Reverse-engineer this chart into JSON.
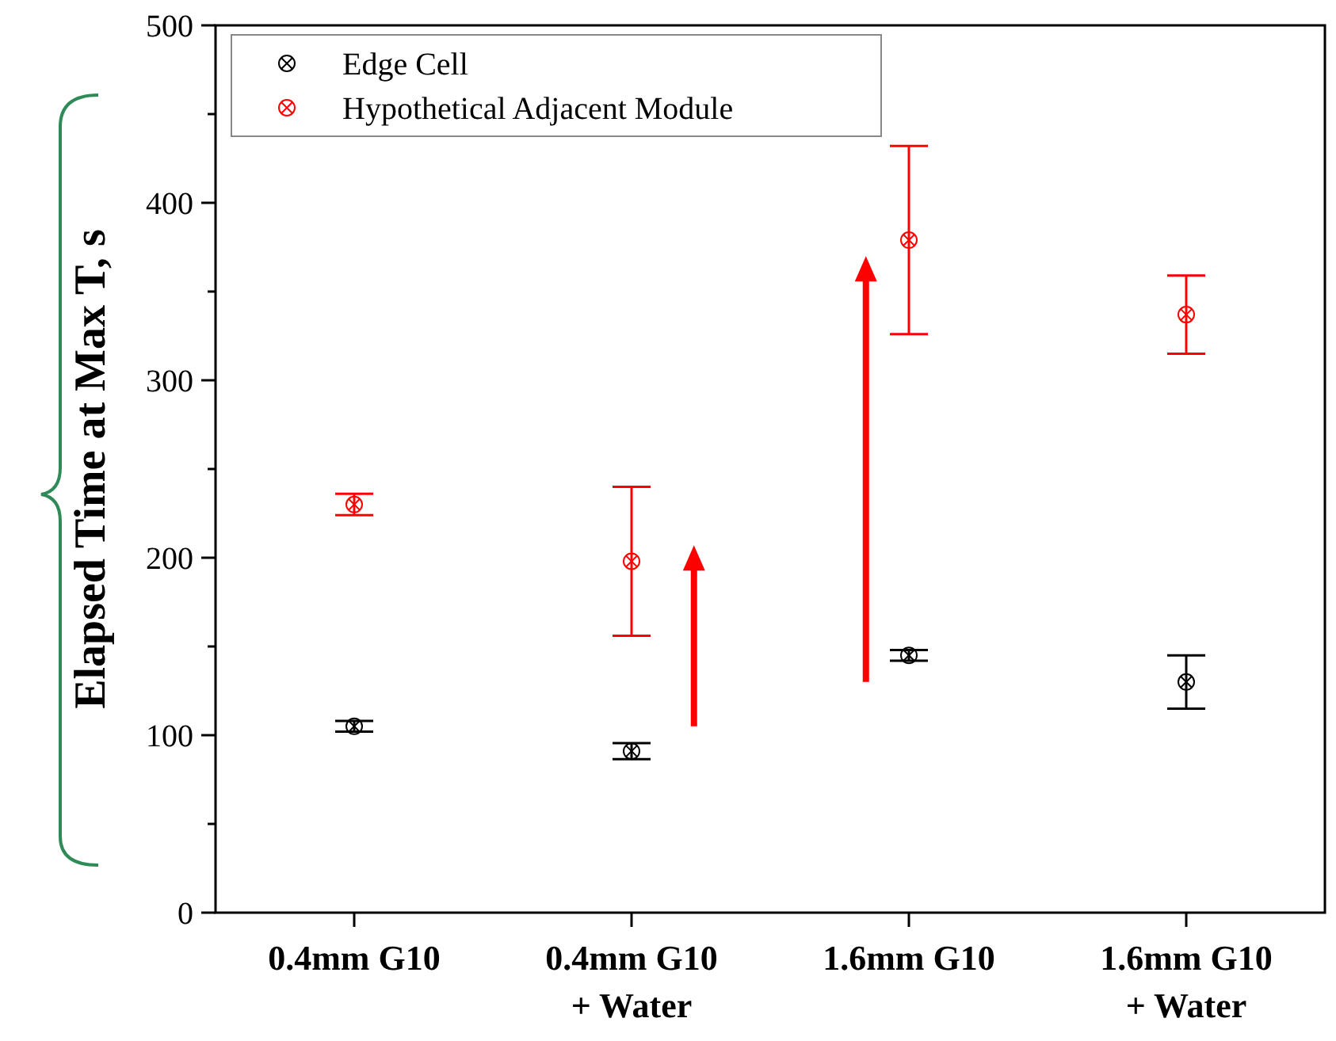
{
  "chart_data": {
    "type": "scatter",
    "ylabel": "Elapsed Time at Max T, s",
    "categories": [
      "0.4mm G10",
      "0.4mm G10\n+ Water",
      "1.6mm G10",
      "1.6mm G10\n+ Water"
    ],
    "ylim": [
      0,
      500
    ],
    "yticks": [
      0,
      {
        "value": 50,
        "label": null
      },
      100,
      {
        "value": 150,
        "label": null
      },
      200,
      {
        "value": 250,
        "label": null
      },
      300,
      {
        "value": 350,
        "label": null
      },
      400,
      {
        "value": 450,
        "label": null
      },
      500
    ],
    "marker": "circle",
    "legend": "top left",
    "grid": false,
    "series": [
      {
        "name": "Edge Cell",
        "color": "#000000",
        "values": [
          105,
          91,
          145,
          130
        ],
        "errors": [
          3,
          4.5,
          3,
          15
        ]
      },
      {
        "name": "Hypothetical Adjacent Module",
        "color": "#ff0000",
        "values": [
          230,
          198,
          379,
          337
        ],
        "errors": [
          6,
          42,
          53,
          22
        ]
      }
    ]
  }
}
